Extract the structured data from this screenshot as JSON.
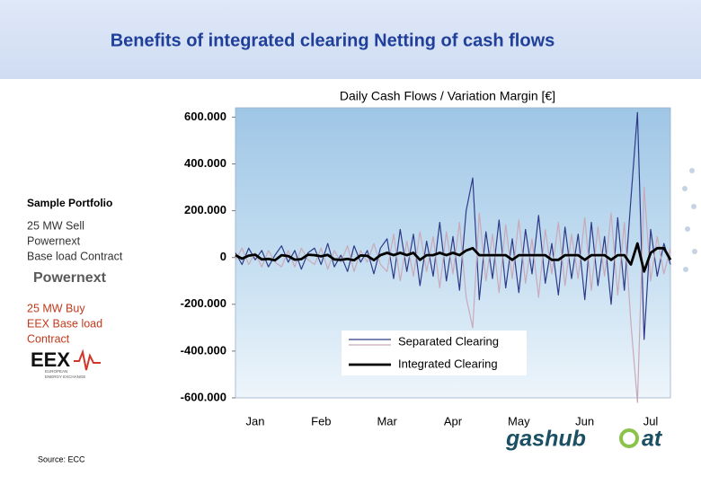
{
  "header": {
    "title": "Benefits of integrated clearing Netting of cash flows"
  },
  "portfolio": {
    "heading": "Sample Portfolio",
    "sell_lines": [
      "25 MW Sell",
      "Powernext",
      "Base load Contract"
    ],
    "sell_logo": "Powernext",
    "buy_lines": [
      "25 MW Buy",
      "EEX Base load",
      "Contract"
    ],
    "buy_logo": "EEX",
    "buy_logo_sub": [
      "EUROPEAN",
      "ENERGY EXCHANGE"
    ]
  },
  "source": "Source: ECC",
  "footer_logo": [
    "gashub",
    "at"
  ],
  "chart_data": {
    "type": "line",
    "title": "Daily Cash Flows / Variation Margin [€]",
    "categories": [
      null,
      null,
      null,
      "Jan",
      null,
      null,
      null,
      null,
      null,
      null,
      null,
      null,
      null,
      "Feb",
      null,
      null,
      null,
      null,
      null,
      null,
      null,
      null,
      null,
      "Mar",
      null,
      null,
      null,
      null,
      null,
      null,
      null,
      null,
      null,
      "Apr",
      null,
      null,
      null,
      null,
      null,
      null,
      null,
      null,
      null,
      "May",
      null,
      null,
      null,
      null,
      null,
      null,
      null,
      null,
      null,
      "Jun",
      null,
      null,
      null,
      null,
      null,
      null,
      null,
      null,
      null,
      "Jul",
      null,
      null,
      null
    ],
    "series": [
      {
        "name": "Separated Clearing",
        "color": "#2e3a87",
        "width": 1.2,
        "values": [
          20000,
          -30000,
          40000,
          -10000,
          30000,
          -40000,
          10000,
          50000,
          -20000,
          30000,
          -50000,
          20000,
          40000,
          -30000,
          60000,
          -40000,
          10000,
          -60000,
          50000,
          -20000,
          30000,
          -70000,
          40000,
          80000,
          -90000,
          120000,
          -60000,
          100000,
          -120000,
          70000,
          -80000,
          150000,
          -100000,
          90000,
          -140000,
          200000,
          340000,
          -180000,
          110000,
          -90000,
          160000,
          -130000,
          80000,
          -150000,
          120000,
          -70000,
          180000,
          -110000,
          60000,
          -160000,
          130000,
          -90000,
          100000,
          -180000,
          150000,
          -120000,
          90000,
          -200000,
          170000,
          -140000,
          250000,
          620000,
          -350000,
          120000,
          -80000,
          60000,
          -30000
        ]
      },
      {
        "color": "#c9a9b9",
        "width": 1.2,
        "values": [
          -10000,
          40000,
          -30000,
          20000,
          -40000,
          30000,
          -20000,
          -40000,
          30000,
          -40000,
          40000,
          -10000,
          -30000,
          40000,
          -50000,
          30000,
          -20000,
          50000,
          -60000,
          30000,
          -20000,
          60000,
          -30000,
          -60000,
          100000,
          -100000,
          70000,
          -80000,
          110000,
          -60000,
          90000,
          -130000,
          110000,
          -70000,
          150000,
          -170000,
          -300000,
          190000,
          -100000,
          100000,
          -150000,
          140000,
          -90000,
          160000,
          -110000,
          80000,
          -170000,
          120000,
          -70000,
          150000,
          -120000,
          100000,
          -90000,
          170000,
          -140000,
          130000,
          -80000,
          190000,
          -160000,
          150000,
          -280000,
          -620000,
          300000,
          -100000,
          90000,
          -70000,
          40000
        ]
      },
      {
        "name": "Integrated Clearing",
        "color": "#000000",
        "width": 2.8,
        "values": [
          10000,
          -5000,
          8000,
          12000,
          -8000,
          -6000,
          -12000,
          10000,
          6000,
          -9000,
          -7000,
          12000,
          10000,
          5000,
          11000,
          -8000,
          -10000,
          -6000,
          -12000,
          9000,
          7000,
          -11000,
          10000,
          20000,
          10000,
          20000,
          10000,
          20000,
          -10000,
          10000,
          10000,
          20000,
          10000,
          20000,
          10000,
          30000,
          40000,
          10000,
          10000,
          10000,
          10000,
          10000,
          -10000,
          10000,
          10000,
          10000,
          10000,
          10000,
          -10000,
          -10000,
          10000,
          10000,
          10000,
          -10000,
          10000,
          10000,
          10000,
          -10000,
          10000,
          10000,
          -30000,
          60000,
          -60000,
          20000,
          40000,
          40000,
          -10000
        ]
      }
    ],
    "ylim": [
      -600000,
      640000
    ],
    "yticks": [
      {
        "value": -600000,
        "label": "-600.000"
      },
      {
        "value": -400000,
        "label": "-400.000"
      },
      {
        "value": -200000,
        "label": "-200.000"
      },
      0,
      {
        "value": 200000,
        "label": "200.000"
      },
      {
        "value": 400000,
        "label": "400.000"
      },
      {
        "value": 600000,
        "label": "600.000"
      }
    ],
    "grid": false
  }
}
